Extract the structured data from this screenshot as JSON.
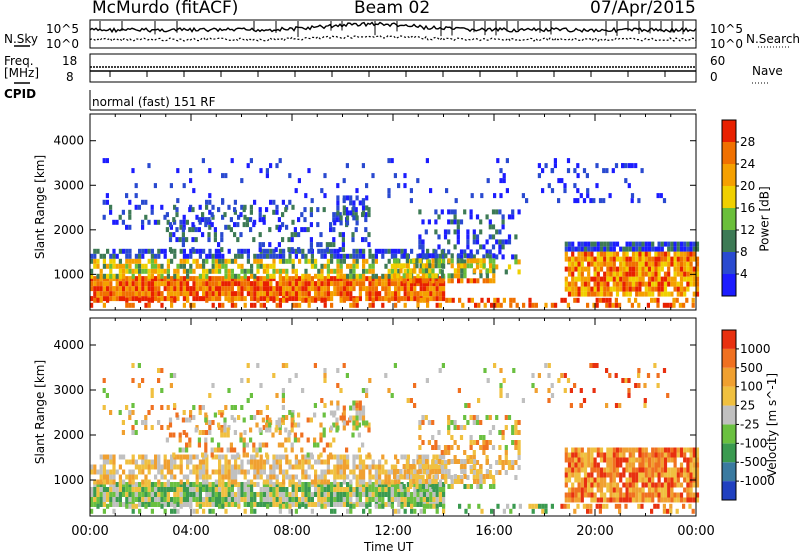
{
  "header": {
    "station": "McMurdo (fitACF)",
    "beam": "Beam 02",
    "date": "07/Apr/2015"
  },
  "top_panels": {
    "n_sky_label": "N.Sky",
    "n_search_label": "N.Search",
    "freq_label": "Freq.",
    "freq_unit": "[MHz]",
    "nave_label": "Nave",
    "cpid_label": "CPID",
    "cpid_text": "normal (fast) 151 RF",
    "noise_left_ticks": [
      "10^5",
      "10^0"
    ],
    "noise_right_ticks": [
      "10^5",
      "10^0"
    ],
    "freq_ticks": [
      "18",
      "8"
    ],
    "nave_ticks": [
      "60",
      "0"
    ]
  },
  "chart_data": [
    {
      "type": "heatmap",
      "title": "",
      "xlabel": "",
      "ylabel": "Slant Range [km]",
      "xlim": [
        "00:00",
        "00:00"
      ],
      "ylim": [
        200,
        4600
      ],
      "yticks": [
        1000,
        2000,
        3000,
        4000
      ],
      "colorbar": {
        "label": "Power [dB]",
        "ticks": [
          4,
          8,
          12,
          16,
          20,
          24,
          28
        ],
        "colors": [
          "#1c1cff",
          "#2a4ad0",
          "#3d7a55",
          "#6abf3a",
          "#f0d000",
          "#f5a000",
          "#f07000",
          "#e82000"
        ]
      }
    },
    {
      "type": "heatmap",
      "title": "",
      "xlabel": "Time UT",
      "ylabel": "Slant Range [km]",
      "xticks": [
        "00:00",
        "04:00",
        "08:00",
        "12:00",
        "16:00",
        "20:00",
        "00:00"
      ],
      "ylim": [
        200,
        4600
      ],
      "yticks": [
        1000,
        2000,
        3000,
        4000
      ],
      "colorbar": {
        "label": "Velocity [m s^-1]",
        "ticks": [
          1000,
          500,
          100,
          25,
          -25,
          -100,
          -500,
          -1000
        ],
        "colors": [
          "#2040c0",
          "#3a7aa0",
          "#3a9a50",
          "#6ac040",
          "#c0c0c0",
          "#f0c040",
          "#f0a030",
          "#f07020",
          "#e83010"
        ]
      }
    }
  ]
}
